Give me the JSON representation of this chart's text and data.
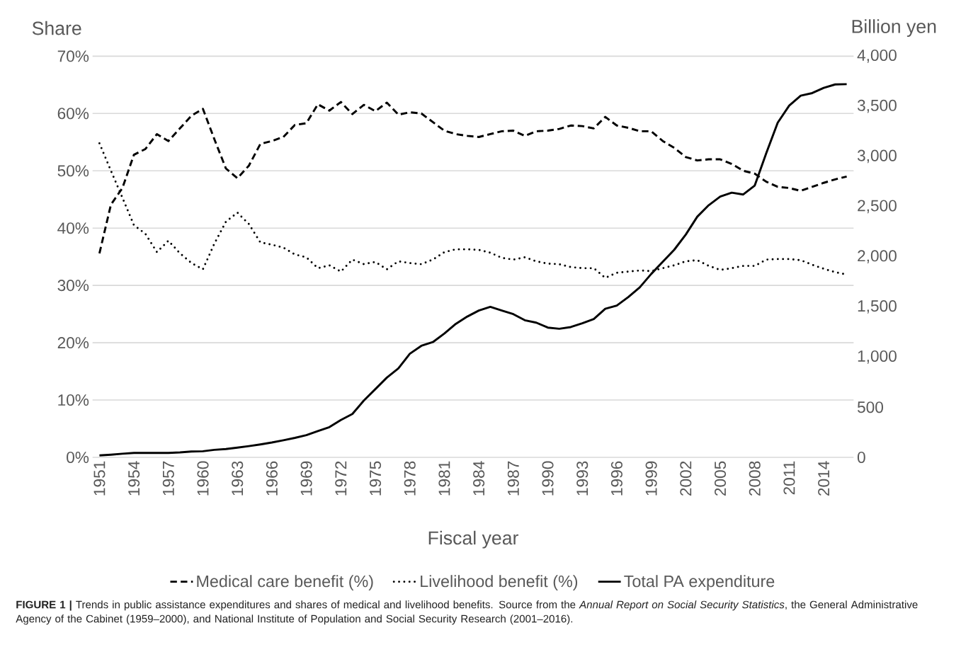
{
  "chart_data": {
    "type": "line",
    "xlabel": "Fiscal year",
    "ylabel": "Share",
    "y2label": "Billion yen",
    "annotations": [
      "**FIGURE 1 |** Trends in public assistance expenditures and shares of medical and livelihood benefits. Source from the *Annual Report on Social Security Statistics*, the General Administrative Agency of the Cabinet (1959–2000), and National Institute of Population and Social Security Research (2001–2016)."
    ],
    "x": [
      1951,
      1952,
      1953,
      1954,
      1955,
      1956,
      1957,
      1958,
      1959,
      1960,
      1961,
      1962,
      1963,
      1964,
      1965,
      1966,
      1967,
      1968,
      1969,
      1970,
      1971,
      1972,
      1973,
      1974,
      1975,
      1976,
      1977,
      1978,
      1979,
      1980,
      1981,
      1982,
      1983,
      1984,
      1985,
      1986,
      1987,
      1988,
      1989,
      1990,
      1991,
      1992,
      1993,
      1994,
      1995,
      1996,
      1997,
      1998,
      1999,
      2000,
      2001,
      2002,
      2003,
      2004,
      2005,
      2006,
      2007,
      2008,
      2009,
      2010,
      2011,
      2012,
      2013,
      2014,
      2015,
      2016
    ],
    "series": [
      {
        "name": "Medical care benefit (%)",
        "color": "#000000",
        "line_style": "dashed",
        "values": [
          35.6,
          44.1,
          47.0,
          52.8,
          53.8,
          56.4,
          55.2,
          57.4,
          59.6,
          60.8,
          55.5,
          50.4,
          48.7,
          50.9,
          54.7,
          55.2,
          55.9,
          58.0,
          58.3,
          61.6,
          60.5,
          62.0,
          59.9,
          61.5,
          60.4,
          61.9,
          59.8,
          60.2,
          60.0,
          58.5,
          57.0,
          56.4,
          56.1,
          55.9,
          56.4,
          56.9,
          57.0,
          56.1,
          56.9,
          57.0,
          57.3,
          57.9,
          57.8,
          57.4,
          59.4,
          57.9,
          57.5,
          56.9,
          56.9,
          55.2,
          54.0,
          52.4,
          51.8,
          52.0,
          52.0,
          51.2,
          50.0,
          49.5,
          48.1,
          47.2,
          47.0,
          46.5,
          47.2,
          47.9,
          48.5,
          49.0
        ]
      },
      {
        "name": "Livelihood benefit (%)",
        "color": "#000000",
        "line_style": "dotted",
        "values": [
          54.8,
          50.0,
          45.3,
          40.5,
          39.0,
          35.8,
          37.8,
          35.6,
          33.9,
          32.8,
          37.3,
          41.1,
          42.7,
          40.7,
          37.5,
          37.1,
          36.6,
          35.4,
          34.9,
          33.0,
          33.5,
          32.4,
          34.5,
          33.7,
          34.1,
          32.8,
          34.2,
          33.9,
          33.7,
          34.5,
          35.8,
          36.3,
          36.3,
          36.2,
          35.7,
          34.8,
          34.5,
          34.9,
          34.2,
          33.8,
          33.7,
          33.2,
          33.0,
          33.0,
          31.3,
          32.2,
          32.4,
          32.6,
          32.5,
          33.0,
          33.5,
          34.2,
          34.4,
          33.4,
          32.7,
          33.0,
          33.4,
          33.4,
          34.5,
          34.6,
          34.6,
          34.4,
          33.6,
          32.9,
          32.3,
          31.9
        ]
      },
      {
        "name": "Total PA expenditure",
        "color": "#000000",
        "line_style": "solid",
        "axis": "y2",
        "values": [
          19,
          27,
          36,
          44,
          44,
          44,
          44,
          49,
          58,
          61,
          75,
          83,
          97,
          112,
          129,
          148,
          170,
          194,
          221,
          262,
          301,
          372,
          432,
          566,
          680,
          795,
          886,
          1033,
          1112,
          1149,
          1234,
          1331,
          1404,
          1464,
          1501,
          1464,
          1428,
          1367,
          1343,
          1294,
          1282,
          1299,
          1336,
          1379,
          1481,
          1513,
          1598,
          1695,
          1829,
          1950,
          2070,
          2221,
          2399,
          2514,
          2600,
          2639,
          2621,
          2710,
          3031,
          3337,
          3507,
          3606,
          3632,
          3684,
          3718,
          3721
        ]
      }
    ],
    "xlim": [
      1950.4,
      2016.6
    ],
    "xticks": [
      1951,
      1954,
      1957,
      1960,
      1963,
      1966,
      1969,
      1972,
      1975,
      1978,
      1981,
      1984,
      1987,
      1990,
      1993,
      1996,
      1999,
      2002,
      2005,
      2008,
      2011,
      2014
    ],
    "ylim": [
      0,
      70
    ],
    "yticks": [
      {
        "value": 0,
        "label": "0%"
      },
      {
        "value": 10,
        "label": "10%"
      },
      {
        "value": 20,
        "label": "20%"
      },
      {
        "value": 30,
        "label": "30%"
      },
      {
        "value": 40,
        "label": "40%"
      },
      {
        "value": 50,
        "label": "50%"
      },
      {
        "value": 60,
        "label": "60%"
      },
      {
        "value": 70,
        "label": "70%"
      }
    ],
    "y2lim": [
      0,
      4000
    ],
    "y2ticks": [
      0,
      500,
      {
        "value": 1000,
        "label": "1,000"
      },
      {
        "value": 1500,
        "label": "1,500"
      },
      {
        "value": 2000,
        "label": "2,000"
      },
      {
        "value": 2500,
        "label": "2,500"
      },
      {
        "value": 3000,
        "label": "3,000"
      },
      {
        "value": 3500,
        "label": "3,500"
      },
      {
        "value": 4000,
        "label": "4,000"
      }
    ],
    "grid": "y",
    "legend": "bottom"
  }
}
